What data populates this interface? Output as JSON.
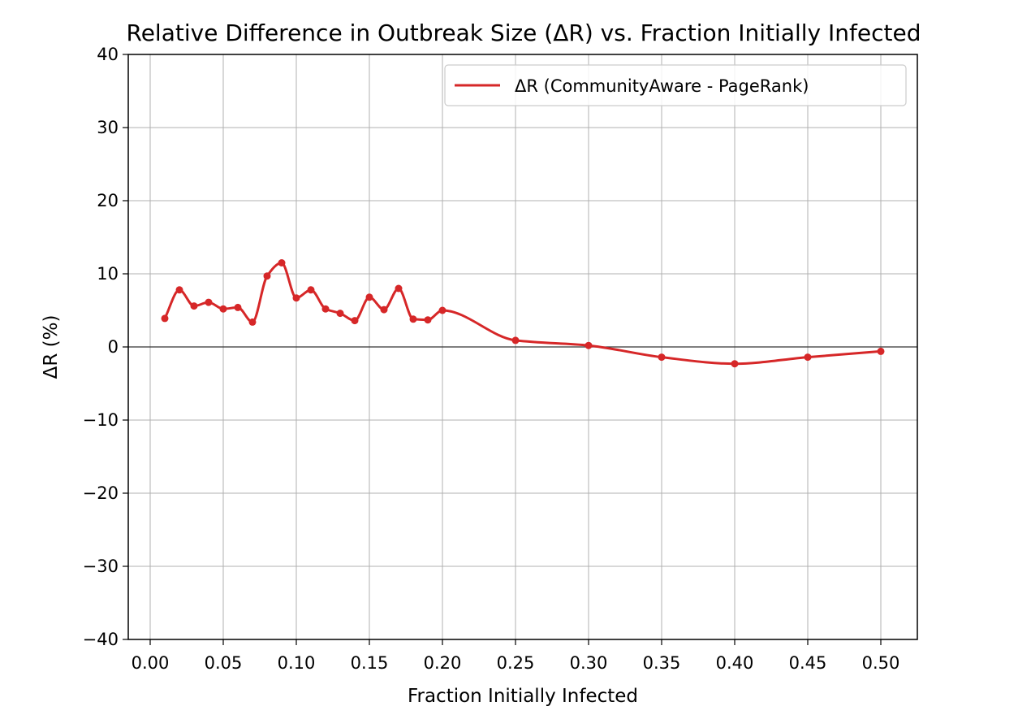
{
  "chart_data": {
    "type": "line",
    "title": "Relative Difference in Outbreak Size (ΔR) vs. Fraction Initially Infected",
    "xlabel": "Fraction Initially Infected",
    "ylabel": "ΔR (%)",
    "xlim": [
      -0.015,
      0.525
    ],
    "ylim": [
      -40,
      40
    ],
    "xticks": [
      0.0,
      0.05,
      0.1,
      0.15,
      0.2,
      0.25,
      0.3,
      0.35,
      0.4,
      0.45,
      0.5
    ],
    "xtick_labels": [
      "0.00",
      "0.05",
      "0.10",
      "0.15",
      "0.20",
      "0.25",
      "0.30",
      "0.35",
      "0.40",
      "0.45",
      "0.50"
    ],
    "yticks": [
      -40,
      -30,
      -20,
      -10,
      0,
      10,
      20,
      30,
      40
    ],
    "ytick_labels": [
      "−40",
      "−30",
      "−20",
      "−10",
      "0",
      "10",
      "20",
      "30",
      "40"
    ],
    "grid": true,
    "zero_line": true,
    "legend_position": "top-right",
    "series": [
      {
        "name": "ΔR (CommunityAware - PageRank)",
        "color": "#d62728",
        "smooth": true,
        "x": [
          0.01,
          0.02,
          0.03,
          0.04,
          0.05,
          0.06,
          0.07,
          0.08,
          0.09,
          0.1,
          0.11,
          0.12,
          0.13,
          0.14,
          0.15,
          0.16,
          0.17,
          0.18,
          0.19,
          0.2,
          0.25,
          0.3,
          0.35,
          0.4,
          0.45,
          0.5
        ],
        "y": [
          3.9,
          7.8,
          5.6,
          6.1,
          5.2,
          5.4,
          3.4,
          9.7,
          11.5,
          6.7,
          7.8,
          5.2,
          4.6,
          3.6,
          6.8,
          5.1,
          8.0,
          3.8,
          3.7,
          5.0,
          0.9,
          0.2,
          -1.4,
          -2.3,
          -1.4,
          -0.6
        ]
      }
    ]
  }
}
